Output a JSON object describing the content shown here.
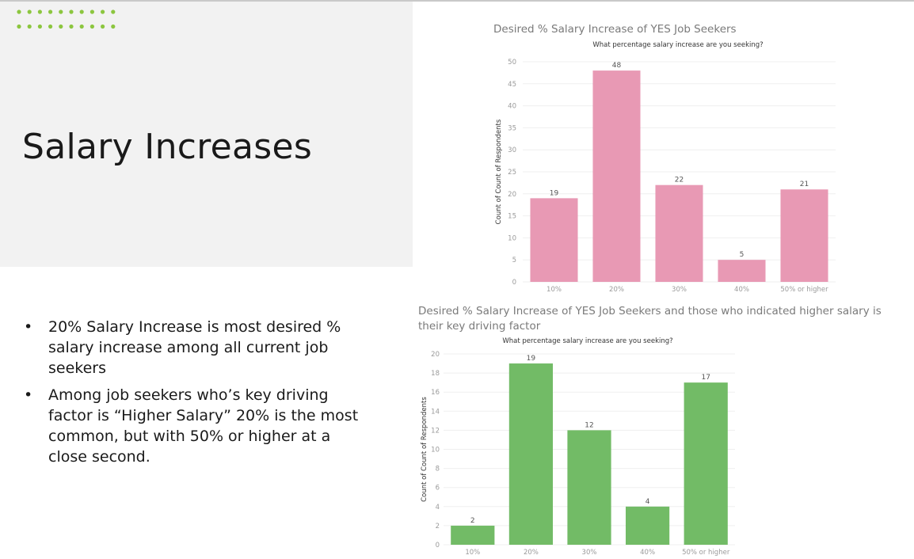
{
  "slide": {
    "title": "Salary Increases",
    "bullets": [
      "20% Salary Increase is most desired % salary increase among all current job seekers",
      "Among job seekers who’s key driving factor is “Higher Salary” 20% is the most common, but with 50% or higher at a close second."
    ],
    "bullet_marker": "•",
    "accent_color": "#8cc63f",
    "panel_color": "#f2f2f2"
  },
  "chart_data": [
    {
      "type": "bar",
      "title": "Desired % Salary Increase of YES Job Seekers",
      "subtitle": "What percentage salary increase are you seeking?",
      "xlabel": "",
      "ylabel": "Count of Count of Respondents",
      "categories": [
        "10%",
        "20%",
        "30%",
        "40%",
        "50% or higher"
      ],
      "values": [
        19,
        48,
        22,
        5,
        21
      ],
      "yticks": [
        0,
        5,
        10,
        15,
        20,
        25,
        30,
        35,
        40,
        45,
        50
      ],
      "ylim": [
        0,
        50
      ],
      "grid": true,
      "legend": "none",
      "bar_color": "#e899b4"
    },
    {
      "type": "bar",
      "title": "Desired % Salary Increase of YES Job Seekers and those who indicated higher salary is their key driving factor",
      "subtitle": "What percentage salary increase are you seeking?",
      "xlabel": "",
      "ylabel": "Count of Count of Respondents",
      "categories": [
        "10%",
        "20%",
        "30%",
        "40%",
        "50% or higher"
      ],
      "values": [
        2,
        19,
        12,
        4,
        17
      ],
      "yticks": [
        0,
        2,
        4,
        6,
        8,
        10,
        12,
        14,
        16,
        18,
        20
      ],
      "ylim": [
        0,
        20
      ],
      "grid": true,
      "legend": "none",
      "bar_color": "#72bb66"
    }
  ]
}
